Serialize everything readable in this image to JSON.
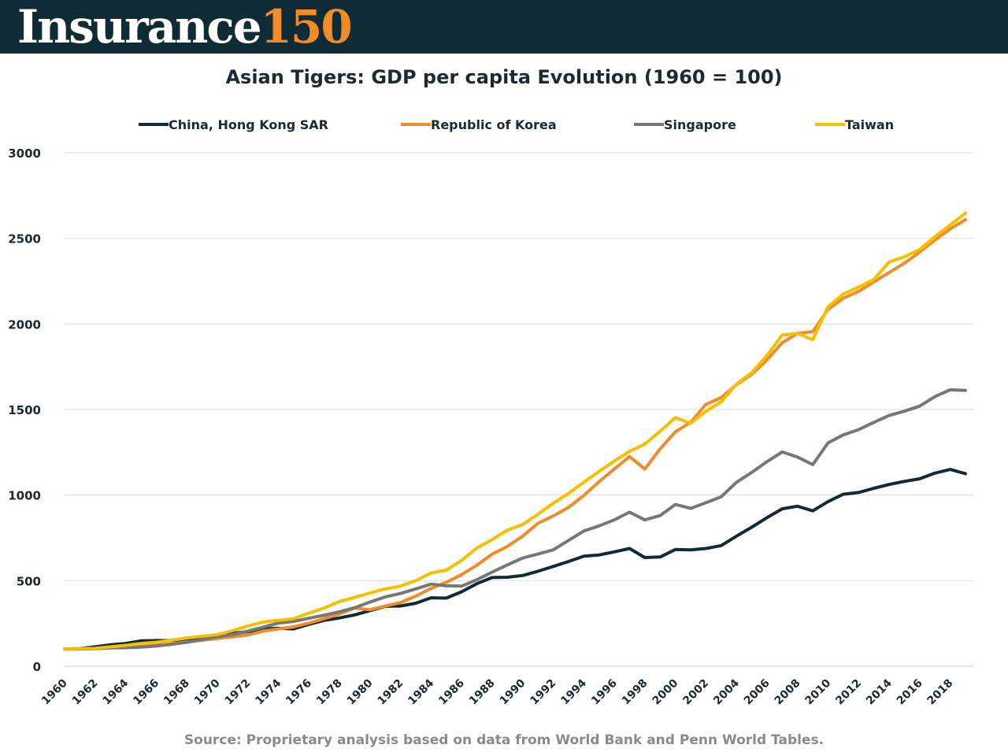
{
  "header": {
    "logo_text": "Insurance",
    "logo_number": "150",
    "logo_colors": {
      "background": "#0f2b36",
      "text": "#ffffff",
      "number": "#f28c28"
    }
  },
  "source_note": "Source: Proprietary analysis based on data from World Bank and Penn World Tables.",
  "chart_data": {
    "type": "line",
    "title": "Asian Tigers: GDP per capita Evolution (1960 = 100)",
    "xlabel": "",
    "ylabel": "",
    "ylim": [
      0,
      3000
    ],
    "yticks": [
      0,
      500,
      1000,
      1500,
      2000,
      2500,
      3000
    ],
    "xticks": [
      "1960",
      "1962",
      "1964",
      "1966",
      "1968",
      "1970",
      "1972",
      "1974",
      "1976",
      "1978",
      "1980",
      "1982",
      "1984",
      "1986",
      "1988",
      "1990",
      "1992",
      "1994",
      "1996",
      "1998",
      "2000",
      "2002",
      "2004",
      "2006",
      "2008",
      "2010",
      "2012",
      "2014",
      "2016",
      "2018"
    ],
    "grid": "horizontal",
    "legend_position": "top",
    "x": [
      1960,
      1961,
      1962,
      1963,
      1964,
      1965,
      1966,
      1967,
      1968,
      1969,
      1970,
      1971,
      1972,
      1973,
      1974,
      1975,
      1976,
      1977,
      1978,
      1979,
      1980,
      1981,
      1982,
      1983,
      1984,
      1985,
      1986,
      1987,
      1988,
      1989,
      1990,
      1991,
      1992,
      1993,
      1994,
      1995,
      1996,
      1997,
      1998,
      1999,
      2000,
      2001,
      2002,
      2003,
      2004,
      2005,
      2006,
      2007,
      2008,
      2009,
      2010,
      2011,
      2012,
      2013,
      2014,
      2015,
      2016,
      2017,
      2018,
      2019
    ],
    "series": [
      {
        "name": "China, Hong Kong SAR",
        "color": "#0f2b36",
        "values": [
          100,
          103,
          113,
          125,
          133,
          148,
          150,
          150,
          158,
          172,
          182,
          192,
          202,
          218,
          222,
          218,
          245,
          268,
          282,
          300,
          325,
          350,
          352,
          368,
          400,
          398,
          435,
          482,
          518,
          520,
          530,
          555,
          583,
          612,
          643,
          650,
          668,
          688,
          635,
          638,
          682,
          680,
          688,
          705,
          760,
          812,
          868,
          920,
          935,
          908,
          962,
          1005,
          1015,
          1040,
          1062,
          1080,
          1095,
          1128,
          1150,
          1125
        ]
      },
      {
        "name": "Republic of Korea",
        "color": "#f28c28",
        "values": [
          100,
          102,
          103,
          108,
          115,
          120,
          125,
          130,
          142,
          152,
          162,
          172,
          182,
          205,
          218,
          230,
          252,
          278,
          305,
          340,
          330,
          352,
          372,
          410,
          455,
          490,
          535,
          590,
          655,
          700,
          760,
          835,
          878,
          928,
          998,
          1078,
          1152,
          1225,
          1152,
          1270,
          1370,
          1425,
          1530,
          1570,
          1645,
          1705,
          1790,
          1890,
          1945,
          1955,
          2085,
          2150,
          2190,
          2245,
          2300,
          2355,
          2420,
          2490,
          2555,
          2610
        ]
      },
      {
        "name": "Singapore",
        "color": "#777777",
        "values": [
          100,
          100,
          103,
          107,
          108,
          112,
          118,
          128,
          140,
          155,
          172,
          185,
          205,
          228,
          252,
          262,
          280,
          298,
          318,
          342,
          375,
          405,
          425,
          452,
          480,
          470,
          468,
          505,
          550,
          592,
          632,
          655,
          680,
          735,
          790,
          820,
          855,
          900,
          855,
          880,
          945,
          922,
          955,
          990,
          1075,
          1132,
          1195,
          1252,
          1222,
          1178,
          1305,
          1352,
          1382,
          1425,
          1465,
          1490,
          1520,
          1575,
          1615,
          1612
        ]
      },
      {
        "name": "Taiwan",
        "color": "#f5c000",
        "values": [
          100,
          103,
          105,
          113,
          122,
          133,
          140,
          152,
          165,
          175,
          185,
          208,
          235,
          258,
          268,
          278,
          310,
          340,
          378,
          402,
          428,
          452,
          468,
          500,
          545,
          562,
          618,
          690,
          740,
          795,
          828,
          888,
          952,
          1010,
          1075,
          1138,
          1198,
          1255,
          1298,
          1372,
          1452,
          1420,
          1490,
          1545,
          1648,
          1715,
          1815,
          1935,
          1945,
          1908,
          2100,
          2175,
          2215,
          2260,
          2362,
          2392,
          2435,
          2510,
          2578,
          2648
        ]
      }
    ]
  }
}
